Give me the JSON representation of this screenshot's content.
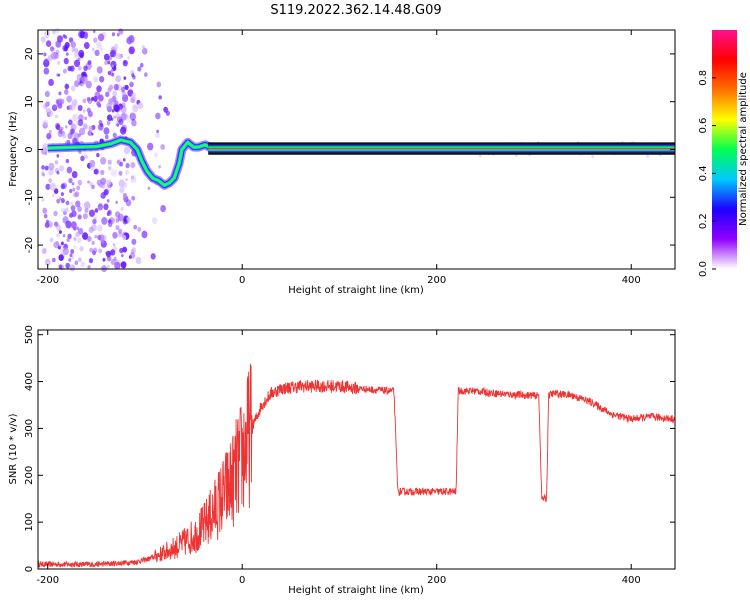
{
  "title": "S119.2022.362.14.48.G09",
  "colors": {
    "snr_line": "#ee3333",
    "axis": "#000000"
  },
  "chart_data": [
    {
      "type": "heatmap",
      "name": "spectrogram",
      "xlabel": "Height of straight line (km)",
      "ylabel": "Frequency (Hz)",
      "xlim": [
        -210,
        445
      ],
      "ylim": [
        -25,
        25
      ],
      "xticks": [
        -200,
        0,
        200,
        400
      ],
      "yticks": [
        -20,
        -10,
        0,
        10,
        20
      ],
      "colorbar": {
        "label": "Normalized spectral amplitude",
        "range": [
          0,
          1
        ],
        "ticks": [
          "0.0",
          "0.2",
          "0.4",
          "0.6",
          "0.8"
        ],
        "colormap": [
          "#ffffff",
          "#9000ff",
          "#1e00ff",
          "#00c8ff",
          "#00ff50",
          "#ffff00",
          "#ff7000",
          "#ff0000",
          "#ff1090"
        ]
      },
      "ridge": [
        [
          -200,
          0.3
        ],
        [
          -170,
          0.5
        ],
        [
          -150,
          0.6
        ],
        [
          -135,
          1.2
        ],
        [
          -125,
          2
        ],
        [
          -115,
          1.5
        ],
        [
          -108,
          0
        ],
        [
          -103,
          -2.5
        ],
        [
          -98,
          -4.5
        ],
        [
          -92,
          -6
        ],
        [
          -86,
          -6.5
        ],
        [
          -80,
          -7.5
        ],
        [
          -75,
          -7
        ],
        [
          -70,
          -6
        ],
        [
          -65,
          -3
        ],
        [
          -62,
          0
        ],
        [
          -56,
          1.5
        ],
        [
          -50,
          0.5
        ],
        [
          -45,
          0.5
        ],
        [
          -38,
          1
        ],
        [
          -34,
          0.5
        ],
        [
          0,
          0.3
        ],
        [
          200,
          0.2
        ],
        [
          445,
          0.2
        ]
      ]
    },
    {
      "type": "line",
      "name": "snr",
      "xlabel": "Height of straight line (km)",
      "ylabel": "SNR (10 * v/v)",
      "xlim": [
        -210,
        445
      ],
      "ylim": [
        0,
        510
      ],
      "xticks": [
        -200,
        0,
        200,
        400
      ],
      "yticks": [
        0,
        100,
        200,
        300,
        400,
        500
      ],
      "x": [
        -210,
        -180,
        -150,
        -130,
        -110,
        -95,
        -80,
        -65,
        -50,
        -40,
        -30,
        -20,
        -10,
        0,
        10,
        20,
        30,
        40,
        60,
        80,
        100,
        120,
        150,
        156,
        160,
        180,
        200,
        220,
        222,
        240,
        260,
        280,
        300,
        305,
        308,
        313,
        315,
        320,
        340,
        360,
        380,
        400,
        420,
        445
      ],
      "y": [
        10,
        10,
        10,
        12,
        15,
        22,
        35,
        50,
        70,
        90,
        120,
        155,
        190,
        240,
        300,
        350,
        375,
        385,
        390,
        390,
        390,
        385,
        380,
        380,
        165,
        165,
        165,
        165,
        380,
        380,
        375,
        372,
        370,
        370,
        150,
        150,
        370,
        375,
        370,
        355,
        330,
        320,
        325,
        320
      ]
    }
  ]
}
